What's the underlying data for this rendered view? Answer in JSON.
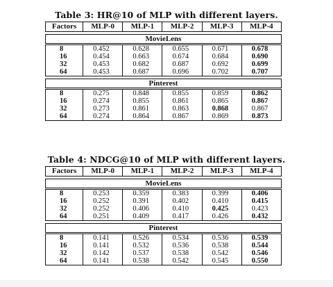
{
  "tables": [
    {
      "caption": "Table 3: HR@10 of MLP with different layers.",
      "headers": [
        "Factors",
        "MLP-0",
        "MLP-1",
        "MLP-2",
        "MLP-3",
        "MLP-4"
      ],
      "sections": [
        {
          "name": "MovieLens",
          "rows": [
            {
              "factor": "8",
              "values": [
                "0.452",
                "0.628",
                "0.655",
                "0.671",
                "0.678"
              ],
              "bold": [
                4
              ]
            },
            {
              "factor": "16",
              "values": [
                "0.454",
                "0.663",
                "0.674",
                "0.684",
                "0.690"
              ],
              "bold": [
                4
              ]
            },
            {
              "factor": "32",
              "values": [
                "0.453",
                "0.682",
                "0.687",
                "0.692",
                "0.699"
              ],
              "bold": [
                4
              ]
            },
            {
              "factor": "64",
              "values": [
                "0.453",
                "0.687",
                "0.696",
                "0.702",
                "0.707"
              ],
              "bold": [
                4
              ]
            }
          ]
        },
        {
          "name": "Pinterest",
          "rows": [
            {
              "factor": "8",
              "values": [
                "0.275",
                "0.848",
                "0.855",
                "0.859",
                "0.862"
              ],
              "bold": [
                4
              ]
            },
            {
              "factor": "16",
              "values": [
                "0.274",
                "0.855",
                "0.861",
                "0.865",
                "0.867"
              ],
              "bold": [
                4
              ]
            },
            {
              "factor": "32",
              "values": [
                "0.273",
                "0.861",
                "0.863",
                "0.868",
                "0.867"
              ],
              "bold": [
                3
              ]
            },
            {
              "factor": "64",
              "values": [
                "0.274",
                "0.864",
                "0.867",
                "0.869",
                "0.873"
              ],
              "bold": [
                4
              ]
            }
          ]
        }
      ]
    },
    {
      "caption": "Table 4: NDCG@10 of MLP with different layers.",
      "headers": [
        "Factors",
        "MLP-0",
        "MLP-1",
        "MLP-2",
        "MLP-3",
        "MLP-4"
      ],
      "sections": [
        {
          "name": "MovieLens",
          "rows": [
            {
              "factor": "8",
              "values": [
                "0.253",
                "0.359",
                "0.383",
                "0.399",
                "0.406"
              ],
              "bold": [
                4
              ]
            },
            {
              "factor": "16",
              "values": [
                "0.252",
                "0.391",
                "0.402",
                "0.410",
                "0.415"
              ],
              "bold": [
                4
              ]
            },
            {
              "factor": "32",
              "values": [
                "0.252",
                "0.406",
                "0.410",
                "0.425",
                "0.423"
              ],
              "bold": [
                3
              ]
            },
            {
              "factor": "64",
              "values": [
                "0.251",
                "0.409",
                "0.417",
                "0.426",
                "0.432"
              ],
              "bold": [
                4
              ]
            }
          ]
        },
        {
          "name": "Pinterest",
          "rows": [
            {
              "factor": "8",
              "values": [
                "0.141",
                "0.526",
                "0.534",
                "0.536",
                "0.539"
              ],
              "bold": [
                4
              ]
            },
            {
              "factor": "16",
              "values": [
                "0.141",
                "0.532",
                "0.536",
                "0.538",
                "0.544"
              ],
              "bold": [
                4
              ]
            },
            {
              "factor": "32",
              "values": [
                "0.142",
                "0.537",
                "0.538",
                "0.542",
                "0.546"
              ],
              "bold": [
                4
              ]
            },
            {
              "factor": "64",
              "values": [
                "0.141",
                "0.538",
                "0.542",
                "0.545",
                "0.550"
              ],
              "bold": [
                4
              ]
            }
          ]
        }
      ]
    }
  ]
}
